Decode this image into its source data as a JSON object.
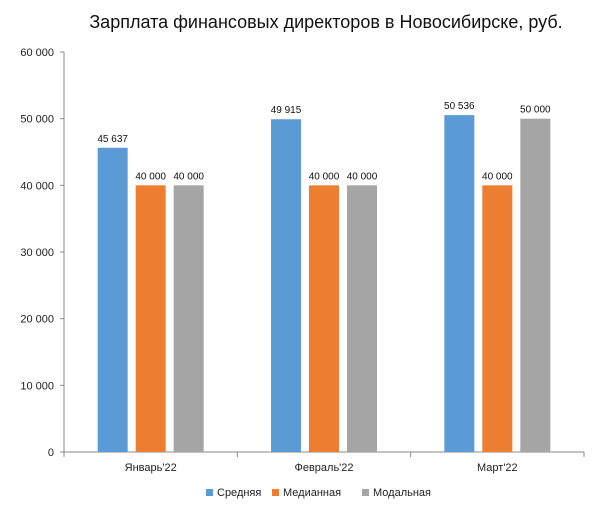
{
  "chart_data": {
    "type": "bar",
    "title": "Зарплата финансовых директоров в Новосибирске, руб.",
    "categories": [
      "Январь'22",
      "Февраль'22",
      "Март'22"
    ],
    "series": [
      {
        "name": "Средняя",
        "color": "#5B9BD5",
        "values": [
          45637,
          49915,
          50536
        ],
        "labels": [
          "45 637",
          "49 915",
          "50 536"
        ]
      },
      {
        "name": "Медианная",
        "color": "#ED7D31",
        "values": [
          40000,
          40000,
          40000
        ],
        "labels": [
          "40 000",
          "40 000",
          "40 000"
        ]
      },
      {
        "name": "Модальная",
        "color": "#A5A5A5",
        "values": [
          40000,
          40000,
          50000
        ],
        "labels": [
          "40 000",
          "40 000",
          "50 000"
        ]
      }
    ],
    "ylim": [
      0,
      60000
    ],
    "yticks": [
      0,
      10000,
      20000,
      30000,
      40000,
      50000,
      60000
    ],
    "ytick_labels": [
      "0",
      "10 000",
      "20 000",
      "30 000",
      "40 000",
      "50 000",
      "60 000"
    ],
    "grid": false,
    "legend": "bottom"
  }
}
